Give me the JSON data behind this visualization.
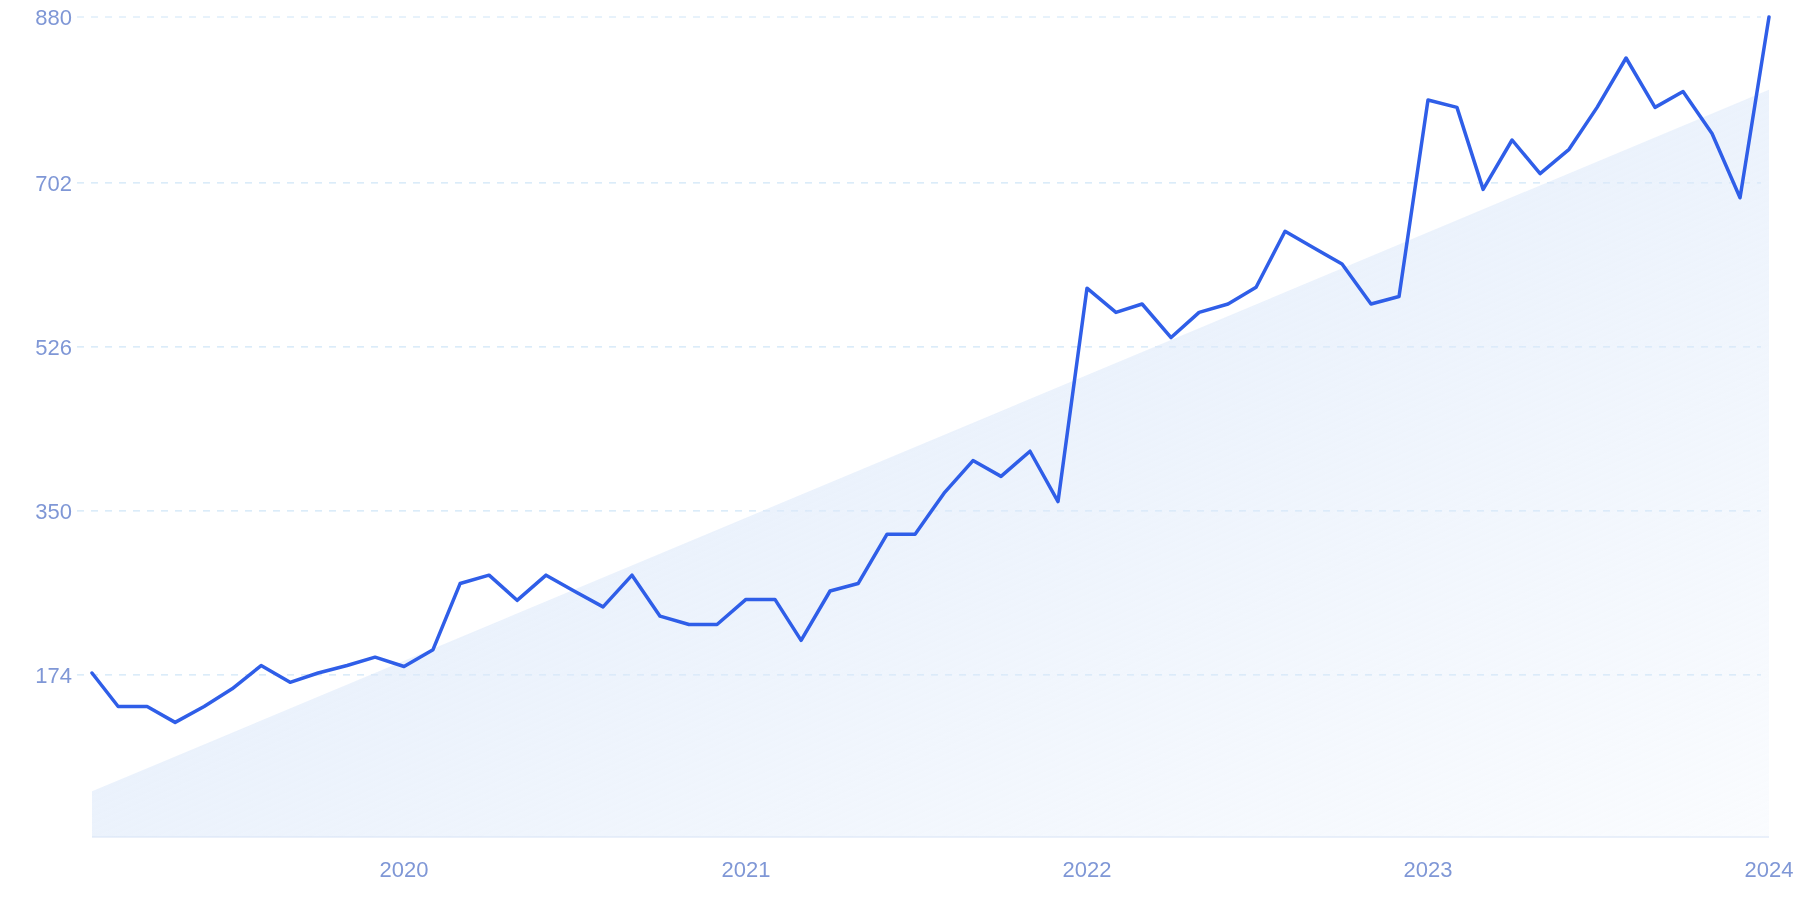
{
  "chart_data": {
    "type": "line",
    "x": [
      "2019-02",
      "2019-03",
      "2019-04",
      "2019-05",
      "2019-06",
      "2019-07",
      "2019-08",
      "2019-09",
      "2019-10",
      "2019-11",
      "2019-12",
      "2020-01",
      "2020-02",
      "2020-03",
      "2020-04",
      "2020-05",
      "2020-06",
      "2020-07",
      "2020-08",
      "2020-09",
      "2020-10",
      "2020-11",
      "2020-12",
      "2021-01",
      "2021-02",
      "2021-03",
      "2021-04",
      "2021-05",
      "2021-06",
      "2021-07",
      "2021-08",
      "2021-09",
      "2021-10",
      "2021-11",
      "2021-12",
      "2022-01",
      "2022-02",
      "2022-03",
      "2022-04",
      "2022-05",
      "2022-06",
      "2022-07",
      "2022-08",
      "2022-09",
      "2022-10",
      "2022-11",
      "2022-12",
      "2023-01",
      "2023-02",
      "2023-03",
      "2023-04",
      "2023-05",
      "2023-06",
      "2023-07",
      "2023-08",
      "2023-09",
      "2023-10",
      "2023-11",
      "2023-12",
      "2024-01"
    ],
    "series": [
      {
        "type": "area",
        "color": "#dde9fa",
        "x": [
          "2019-02",
          "2024-01"
        ],
        "values": [
          49,
          802
        ]
      },
      {
        "color": "#2f5ee8",
        "values": [
          176,
          140,
          140,
          123,
          140,
          159,
          184,
          166,
          176,
          184,
          193,
          183,
          201,
          272,
          281,
          254,
          281,
          264,
          247,
          281,
          237,
          228,
          228,
          255,
          255,
          211,
          264,
          272,
          325,
          325,
          369,
          404,
          387,
          414,
          360,
          589,
          563,
          572,
          536,
          563,
          572,
          590,
          650,
          632,
          615,
          572,
          580,
          791,
          783,
          695,
          748,
          712,
          738,
          783,
          836,
          783,
          800,
          755,
          686,
          880
        ]
      }
    ],
    "xlim": [
      "2019-02",
      "2024-01"
    ],
    "xticks": [
      "2020",
      "2021",
      "2022",
      "2023",
      "2024"
    ],
    "ylim": [
      0,
      880
    ],
    "yticks": [
      174,
      350,
      526,
      702,
      880
    ],
    "grid": "y",
    "line_style": "solid",
    "marker": "none"
  }
}
